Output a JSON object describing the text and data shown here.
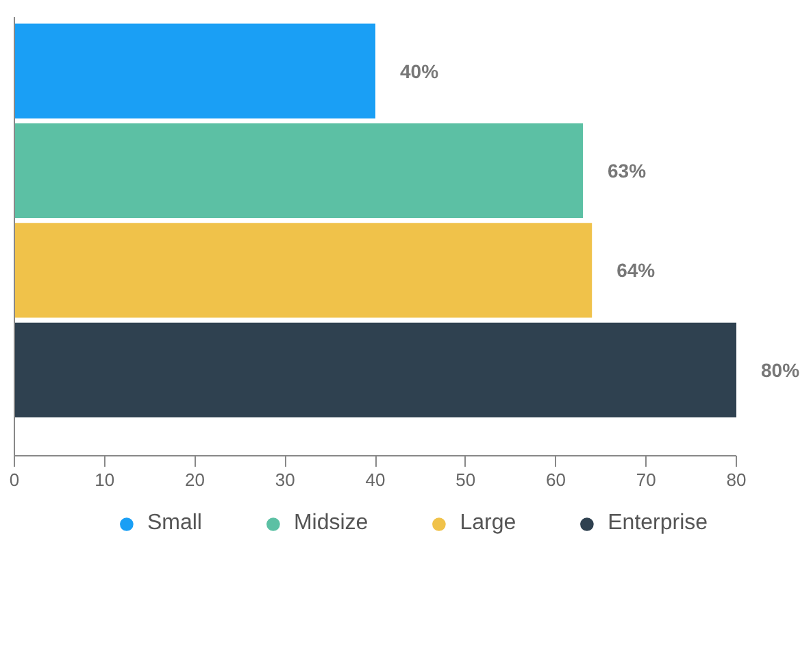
{
  "chart_data": {
    "type": "bar",
    "orientation": "horizontal",
    "categories": [
      null
    ],
    "series": [
      {
        "name": "Small",
        "color": "#1a9ff5",
        "values": [
          40
        ],
        "value_labels": [
          "40%"
        ]
      },
      {
        "name": "Midsize",
        "color": "#5cc0a4",
        "values": [
          63
        ],
        "value_labels": [
          "63%"
        ]
      },
      {
        "name": "Large",
        "color": "#f0c24a",
        "values": [
          64
        ],
        "value_labels": [
          "64%"
        ]
      },
      {
        "name": "Enterprise",
        "color": "#2f4150",
        "values": [
          80
        ],
        "value_labels": [
          "80%"
        ]
      }
    ],
    "xlim": [
      0,
      80
    ],
    "xticks": [
      0,
      10,
      20,
      30,
      40,
      50,
      60,
      70,
      80
    ],
    "tick_labels": "x",
    "grid": false,
    "legend": "bottom"
  }
}
